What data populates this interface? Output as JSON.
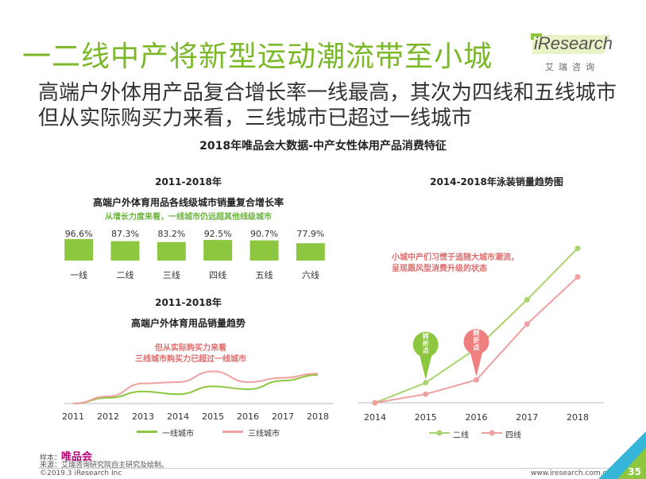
{
  "header": {
    "title": "一二线中产将新型运动潮流带至小城",
    "subtitle_line1": "高端户外体用产品复合增长率一线最高，其次为四线和五线城市",
    "subtitle_line2": "但从实际购买力来看，三线城市已超过一线城市",
    "section_title": "2018年唯品会大数据-中产女性体用产品消费特征"
  },
  "logo": {
    "brand": "iResearch",
    "cn": "艾瑞咨询"
  },
  "colors": {
    "green": "#8dc63f",
    "pink": "#f0a0a0",
    "title_green": "#7ab828"
  },
  "chart_data": [
    {
      "type": "bar",
      "title": "2011-2018年",
      "subtitle": "高端户外体育用品各线级城市销量复合增长率",
      "annotation": "从增长力度来看，一线城市仍远超其他线级城市",
      "categories": [
        "一线",
        "二线",
        "三线",
        "四线",
        "五线",
        "六线"
      ],
      "values": [
        96.6,
        87.3,
        83.2,
        92.5,
        90.7,
        77.9
      ],
      "labels": [
        "96.6%",
        "87.3%",
        "83.2%",
        "92.5%",
        "90.7%",
        "77.9%"
      ],
      "color": "#8dc63f"
    },
    {
      "type": "line",
      "title": "2011-2018年",
      "subtitle": "高端户外体育用品销量趋势",
      "annotation_line1": "但从实际购买力来看",
      "annotation_line2": "三线城市购买力已超过一线城市",
      "x": [
        "2011",
        "2012",
        "2013",
        "2014",
        "2015",
        "2016",
        "2017",
        "2018"
      ],
      "series": [
        {
          "name": "一线城市",
          "color": "#8dc63f",
          "values": [
            0,
            8,
            17,
            13,
            24,
            20,
            32,
            40
          ]
        },
        {
          "name": "三线城市",
          "color": "#f0a0a0",
          "values": [
            0,
            10,
            28,
            30,
            45,
            30,
            36,
            42
          ]
        }
      ]
    },
    {
      "type": "line",
      "title": "2014-2018年泳装销量趋势图",
      "annotation_line1": "小城中产们习惯于追随大城市潮流，",
      "annotation_line2": "呈现跟风型消费升级的状态",
      "x": [
        "2014",
        "2015",
        "2016",
        "2017",
        "2018"
      ],
      "series": [
        {
          "name": "二线",
          "color": "#a8d46f",
          "values": [
            0,
            14,
            38,
            72,
            108
          ]
        },
        {
          "name": "四线",
          "color": "#f0a0a0",
          "values": [
            0,
            6,
            16,
            55,
            88
          ]
        }
      ],
      "markers": [
        {
          "label": "转折点",
          "series": 0,
          "x_index": 1,
          "color": "#8dc63f"
        },
        {
          "label": "转折点",
          "series": 1,
          "x_index": 2,
          "color": "#f08080"
        }
      ]
    }
  ],
  "footer": {
    "sample_label": "样本：",
    "sample_brand": "唯品会",
    "source": "来源：艾瑞咨询研究院自主研究及绘制。",
    "copyright": "©2019.3 iResearch Inc",
    "website": "www.iresearch.com.cn",
    "page": "35"
  }
}
